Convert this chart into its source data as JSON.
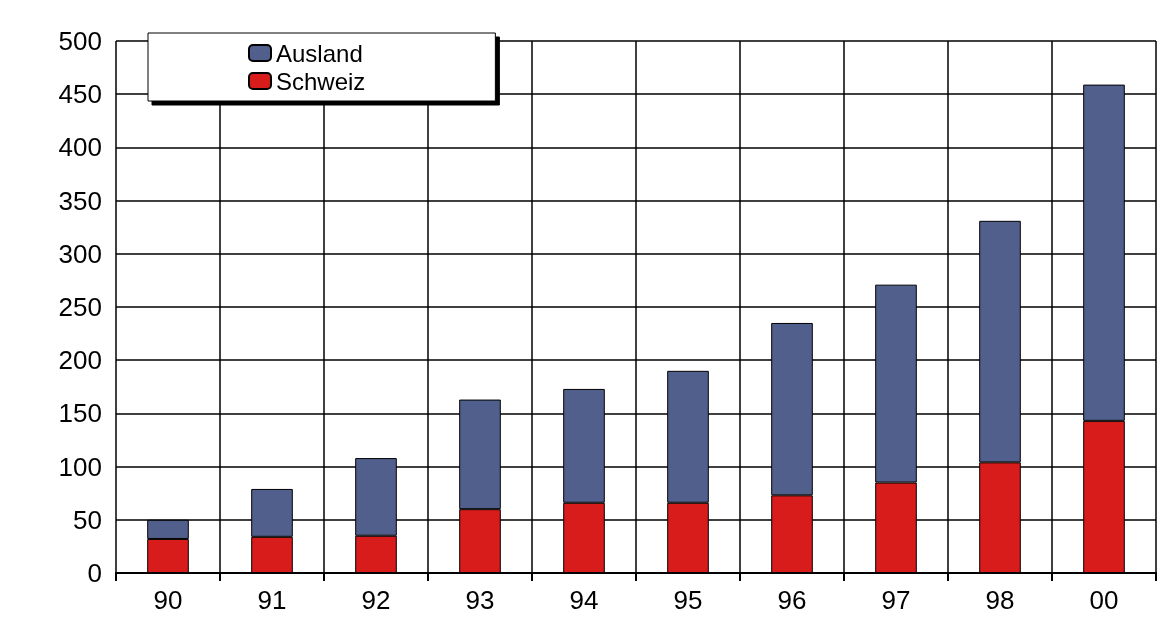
{
  "chart_data": {
    "type": "bar",
    "stacked": true,
    "categories": [
      "90",
      "91",
      "92",
      "93",
      "94",
      "95",
      "96",
      "97",
      "98",
      "00"
    ],
    "series": [
      {
        "name": "Schweiz",
        "color": "#d81c1c",
        "values": [
          32,
          34,
          35,
          60,
          66,
          66,
          73,
          85,
          104,
          143
        ]
      },
      {
        "name": "Ausland",
        "color": "#505f8c",
        "values": [
          18,
          45,
          73,
          103,
          107,
          124,
          162,
          186,
          227,
          316
        ]
      }
    ],
    "ylim": [
      0,
      500
    ],
    "yticks": [
      0,
      50,
      100,
      150,
      200,
      250,
      300,
      350,
      400,
      450,
      500
    ],
    "grid": true,
    "legend": "top left"
  }
}
